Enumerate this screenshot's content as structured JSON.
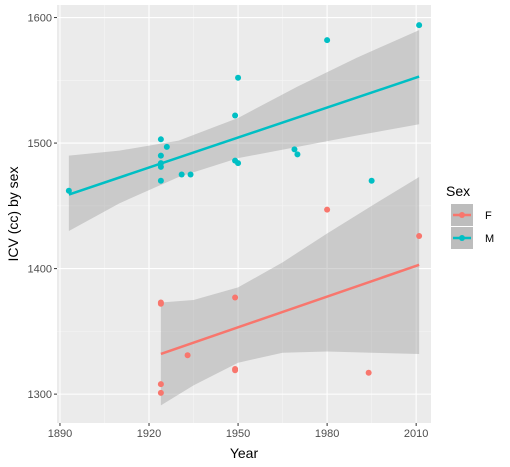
{
  "chart_data": {
    "type": "scatter",
    "xlabel": "Year",
    "ylabel": "ICV (cc) by sex",
    "xlim": [
      1889,
      2015
    ],
    "ylim": [
      1277,
      1610
    ],
    "x_ticks": [
      1890,
      1920,
      1950,
      1980,
      2010
    ],
    "y_ticks": [
      1300,
      1400,
      1500,
      1600
    ],
    "grid": true,
    "legend": {
      "title": "Sex",
      "position": "right"
    },
    "series": [
      {
        "name": "F",
        "color": "#F8766D",
        "points": [
          {
            "x": 1924,
            "y": 1373
          },
          {
            "x": 1924,
            "y": 1372
          },
          {
            "x": 1924,
            "y": 1308
          },
          {
            "x": 1924,
            "y": 1301
          },
          {
            "x": 1933,
            "y": 1331
          },
          {
            "x": 1949,
            "y": 1377
          },
          {
            "x": 1949,
            "y": 1320
          },
          {
            "x": 1949,
            "y": 1319
          },
          {
            "x": 1980,
            "y": 1447
          },
          {
            "x": 1994,
            "y": 1317
          },
          {
            "x": 2011,
            "y": 1426
          }
        ],
        "trend": {
          "x": [
            1924,
            2011
          ],
          "y": [
            1332,
            1403
          ]
        },
        "ci_lower": [
          {
            "x": 1924,
            "y": 1291
          },
          {
            "x": 1935,
            "y": 1307
          },
          {
            "x": 1950,
            "y": 1325
          },
          {
            "x": 1965,
            "y": 1333
          },
          {
            "x": 1980,
            "y": 1334
          },
          {
            "x": 1995,
            "y": 1333
          },
          {
            "x": 2011,
            "y": 1332
          }
        ],
        "ci_upper": [
          {
            "x": 1924,
            "y": 1373
          },
          {
            "x": 1935,
            "y": 1375
          },
          {
            "x": 1950,
            "y": 1385
          },
          {
            "x": 1965,
            "y": 1405
          },
          {
            "x": 1980,
            "y": 1428
          },
          {
            "x": 1995,
            "y": 1450
          },
          {
            "x": 2011,
            "y": 1473
          }
        ]
      },
      {
        "name": "M",
        "color": "#00BFC4",
        "points": [
          {
            "x": 1893,
            "y": 1462
          },
          {
            "x": 1924,
            "y": 1503
          },
          {
            "x": 1924,
            "y": 1490
          },
          {
            "x": 1924,
            "y": 1484
          },
          {
            "x": 1924,
            "y": 1481
          },
          {
            "x": 1924,
            "y": 1470
          },
          {
            "x": 1926,
            "y": 1497
          },
          {
            "x": 1931,
            "y": 1475
          },
          {
            "x": 1934,
            "y": 1475
          },
          {
            "x": 1949,
            "y": 1522
          },
          {
            "x": 1949,
            "y": 1486
          },
          {
            "x": 1950,
            "y": 1484
          },
          {
            "x": 1950,
            "y": 1552
          },
          {
            "x": 1969,
            "y": 1495
          },
          {
            "x": 1970,
            "y": 1491
          },
          {
            "x": 1980,
            "y": 1582
          },
          {
            "x": 1995,
            "y": 1470
          },
          {
            "x": 2011,
            "y": 1594
          }
        ],
        "trend": {
          "x": [
            1893,
            2011
          ],
          "y": [
            1459,
            1553
          ]
        },
        "ci_lower": [
          {
            "x": 1893,
            "y": 1430
          },
          {
            "x": 1910,
            "y": 1452
          },
          {
            "x": 1930,
            "y": 1473
          },
          {
            "x": 1950,
            "y": 1488
          },
          {
            "x": 1970,
            "y": 1497
          },
          {
            "x": 1990,
            "y": 1506
          },
          {
            "x": 2011,
            "y": 1515
          }
        ],
        "ci_upper": [
          {
            "x": 1893,
            "y": 1490
          },
          {
            "x": 1910,
            "y": 1494
          },
          {
            "x": 1930,
            "y": 1502
          },
          {
            "x": 1950,
            "y": 1520
          },
          {
            "x": 1970,
            "y": 1545
          },
          {
            "x": 1990,
            "y": 1568
          },
          {
            "x": 2011,
            "y": 1590
          }
        ]
      }
    ]
  }
}
